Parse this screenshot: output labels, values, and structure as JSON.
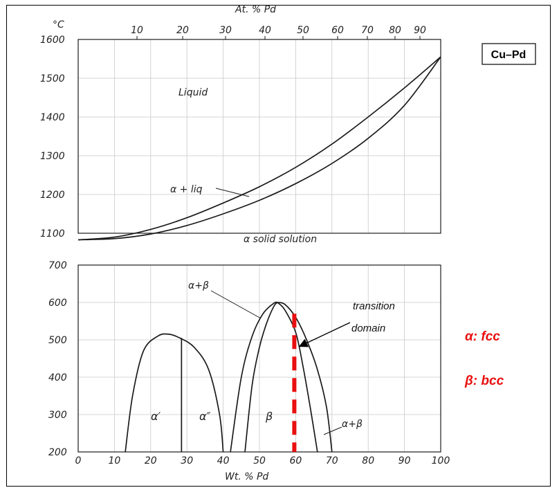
{
  "system_label": "Cu–Pd",
  "top_axis": {
    "title": "At. % Pd",
    "ticks": [
      "10",
      "20",
      "30",
      "40",
      "50",
      "60",
      "70",
      "80",
      "90"
    ]
  },
  "upper_panel": {
    "unit": "°C",
    "y_ticks": [
      "1600",
      "1500",
      "1400",
      "1300",
      "1200",
      "1100"
    ],
    "labels": {
      "liquid": "Liquid",
      "two_phase": "α + liq",
      "solid": "α solid solution"
    }
  },
  "lower_panel": {
    "y_ticks": [
      "700",
      "600",
      "500",
      "400",
      "300",
      "200"
    ],
    "x_ticks": [
      "0",
      "10",
      "20",
      "30",
      "40",
      "50",
      "60",
      "70",
      "80",
      "90",
      "100"
    ],
    "x_title": "Wt. % Pd",
    "labels": {
      "alpha_prime": "α′",
      "alpha_double_prime": "α″",
      "beta": "β",
      "alpha_beta_upper": "α+β",
      "alpha_beta_lower": "α+β"
    }
  },
  "annotation": {
    "line1": "transition",
    "line2": "domain"
  },
  "legend": {
    "alpha": "α: fcc",
    "beta": "β: bcc"
  },
  "colors": {
    "line": "#1a1a1a",
    "grid": "#c9c9c9",
    "highlight": "#e81010"
  },
  "chart_data": {
    "type": "line",
    "xlabel": "Wt. % Pd",
    "secondary_xlabel": "At. % Pd",
    "x_range": [
      0,
      100
    ],
    "panels": [
      {
        "name": "upper",
        "ylabel": "°C",
        "ylim": [
          1100,
          1600
        ],
        "series": [
          {
            "values_x": [
              0,
              10,
              20,
              30,
              40,
              50,
              60,
              70,
              80,
              90,
              100
            ],
            "values_y": [
              1083,
              1090,
              1110,
              1140,
              1178,
              1220,
              1270,
              1330,
              1400,
              1475,
              1555
            ]
          },
          {
            "values_x": [
              0,
              10,
              20,
              30,
              40,
              50,
              60,
              70,
              80,
              90,
              100
            ],
            "values_y": [
              1083,
              1086,
              1098,
              1120,
              1150,
              1185,
              1228,
              1280,
              1345,
              1430,
              1555
            ]
          }
        ]
      },
      {
        "name": "lower",
        "ylim": [
          200,
          700
        ],
        "series": [
          {
            "values_x": [
              13,
              15,
              18,
              22,
              25,
              28,
              32,
              36,
              39,
              40
            ],
            "values_y": [
              200,
              350,
              470,
              510,
              515,
              505,
              480,
              420,
              300,
              200
            ]
          },
          {
            "values_x": [
              28.5,
              28.5
            ],
            "values_y": [
              200,
              505
            ]
          },
          {
            "values_x": [
              42,
              45,
              48,
              51,
              54,
              55
            ],
            "values_y": [
              200,
              400,
              510,
              570,
              598,
              600
            ]
          },
          {
            "values_x": [
              46,
              48,
              50,
              52,
              54,
              55
            ],
            "values_y": [
              200,
              380,
              480,
              545,
              590,
              600
            ]
          },
          {
            "values_x": [
              55,
              57,
              60,
              63,
              66,
              68.5,
              70
            ],
            "values_y": [
              600,
              595,
              560,
              500,
              420,
              320,
              200
            ]
          },
          {
            "values_x": [
              55,
              57,
              60,
              62,
              64,
              66
            ],
            "values_y": [
              600,
              580,
              520,
              430,
              320,
              200
            ]
          }
        ]
      }
    ],
    "highlight_line": {
      "x": 60,
      "y_range": [
        200,
        570
      ],
      "style": "dashed"
    }
  }
}
